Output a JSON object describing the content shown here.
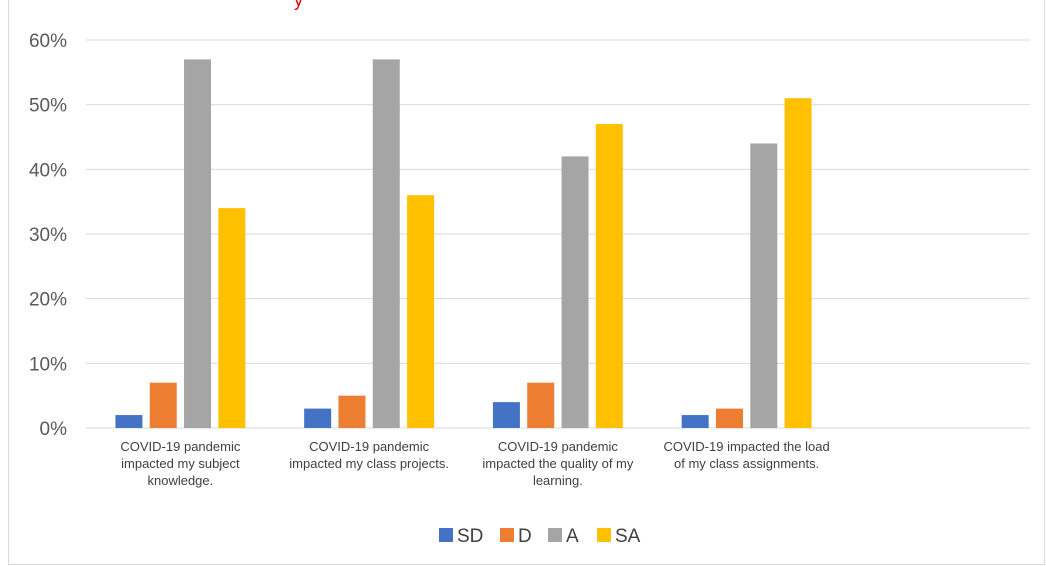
{
  "top_fragment": "y",
  "colors": {
    "SD": "#4472c4",
    "D": "#ed7d31",
    "A": "#a5a5a5",
    "SA": "#ffc000",
    "grid": "#d9d9d9",
    "fragment": "#e00000"
  },
  "chart_data": {
    "type": "bar",
    "title": "",
    "xlabel": "",
    "ylabel": "",
    "ylim": [
      0,
      60
    ],
    "yticks": [
      "0%",
      "10%",
      "20%",
      "30%",
      "40%",
      "50%",
      "60%"
    ],
    "grid": true,
    "legend_position": "bottom",
    "categories": [
      "COVID-19 pandemic impacted my subject knowledge.",
      "COVID-19 pandemic impacted my class projects.",
      "COVID-19 pandemic impacted the quality of my learning.",
      "COVID-19 impacted the load of my class assignments."
    ],
    "category_lines": [
      [
        "COVID-19 pandemic",
        "impacted my subject",
        "knowledge."
      ],
      [
        "COVID-19 pandemic",
        "impacted my class projects."
      ],
      [
        "COVID-19 pandemic",
        "impacted the quality of my",
        "learning."
      ],
      [
        "COVID-19 impacted the load",
        "of my class assignments."
      ]
    ],
    "series": [
      {
        "name": "SD",
        "values": [
          2,
          3,
          4,
          2
        ]
      },
      {
        "name": "D",
        "values": [
          7,
          5,
          7,
          3
        ]
      },
      {
        "name": "A",
        "values": [
          57,
          57,
          42,
          44
        ]
      },
      {
        "name": "SA",
        "values": [
          34,
          36,
          47,
          51
        ]
      }
    ]
  }
}
